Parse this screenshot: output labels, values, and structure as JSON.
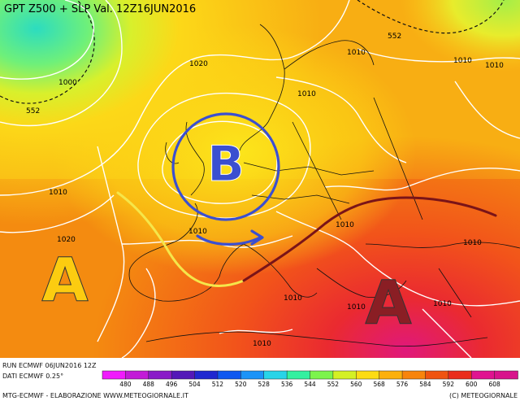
{
  "title": "GPT Z500 + SLP Val. 12Z16JUN2016",
  "run_info": "RUN ECMWF 06JUN2016 12Z",
  "data_info": "DATI ECMWF 0.25°",
  "footer_left": "MTG-ECMWF  -  ELABORAZIONE WWW.METEOGIORNALE.IT",
  "footer_right": "(C) METEOGIORNALE",
  "isobar_labels": [
    "552",
    "1000",
    "552",
    "1020",
    "1020",
    "1010",
    "1010",
    "1010",
    "1010",
    "1010",
    "1010",
    "1010",
    "1010",
    "1010",
    "1010",
    "1010",
    "1010"
  ],
  "high_labels": [
    "A",
    "A"
  ],
  "low_label": "B",
  "colorbar": {
    "ticks": [
      "480",
      "488",
      "496",
      "504",
      "512",
      "520",
      "528",
      "536",
      "544",
      "552",
      "560",
      "568",
      "576",
      "584",
      "592",
      "600",
      "608"
    ],
    "colors": [
      "#f01cfc",
      "#c21cd7",
      "#8a1cc8",
      "#5418b8",
      "#2028d0",
      "#1058f0",
      "#1c94f8",
      "#28d4e8",
      "#34f0a0",
      "#7cf44c",
      "#d4f024",
      "#fcdc14",
      "#fcb00c",
      "#f8840c",
      "#f05410",
      "#ea2c1c",
      "#e01490",
      "#d8148c"
    ]
  },
  "colors": {
    "low_circle": "#3b4fd0",
    "high_left": "#fccc10",
    "high_right": "#8a1e24",
    "yellow_axis": "#f5e64a",
    "trough_axis": "#7a1418"
  }
}
